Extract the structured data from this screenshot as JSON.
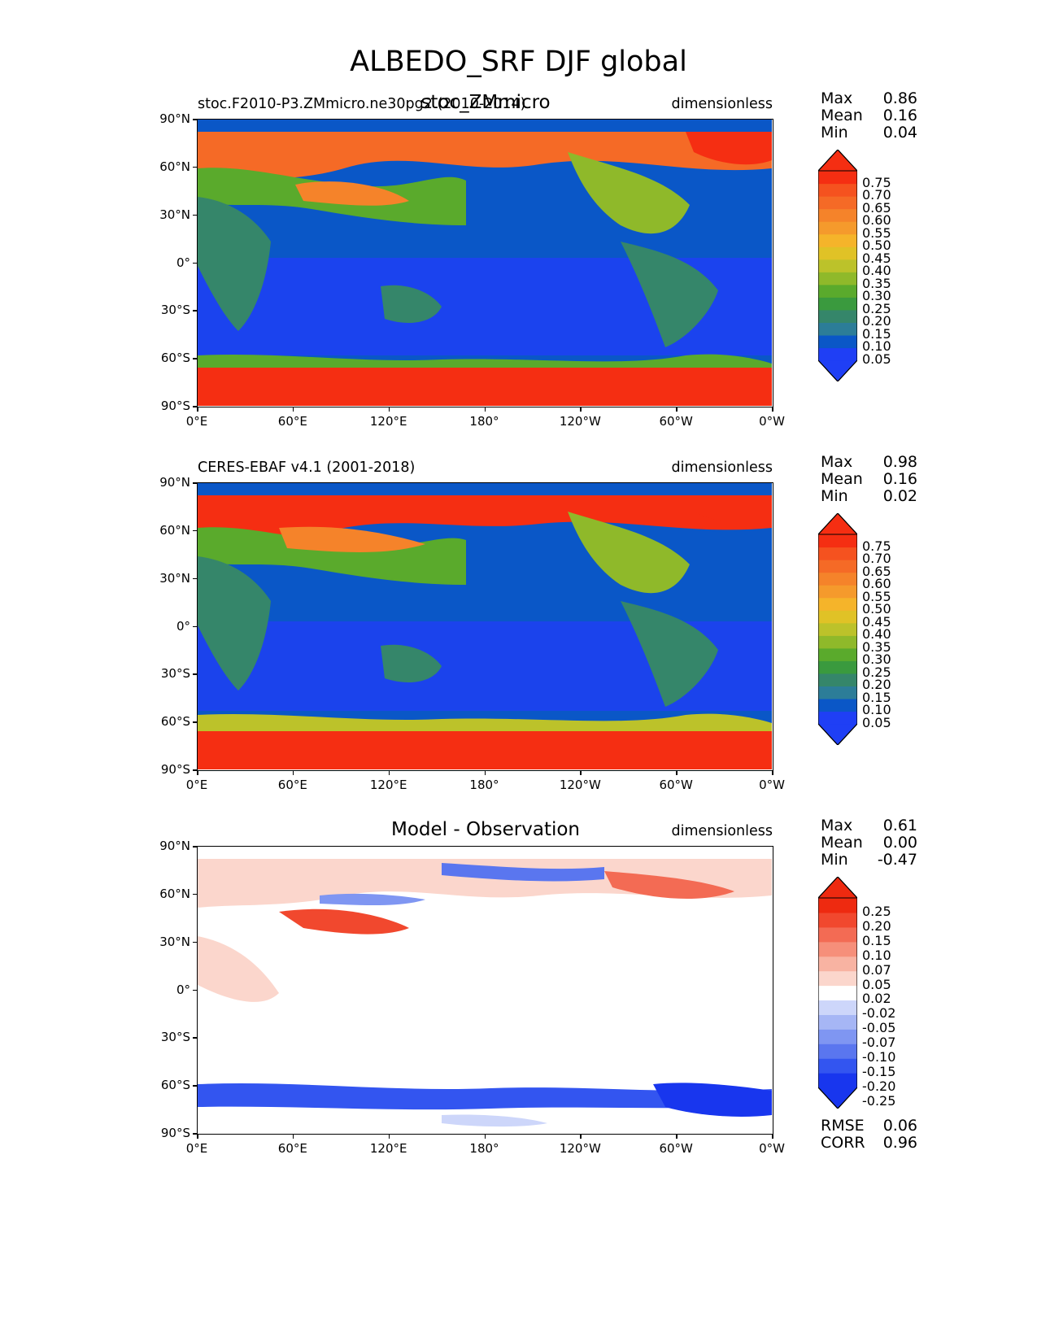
{
  "figure": {
    "title": "ALBEDO_SRF DJF global",
    "panels": [
      {
        "id": "model",
        "left_title": "stoc.F2010-P3.ZMmicro.ne30pg2 (2010-2014)",
        "center_title": "stoc_ZMmicro",
        "unit_label": "dimensionless",
        "stats": [
          {
            "label": "Max",
            "value": "0.86"
          },
          {
            "label": "Mean",
            "value": "0.16"
          },
          {
            "label": "Min",
            "value": "0.04"
          }
        ],
        "colorbar_ticks": [
          "0.75",
          "0.70",
          "0.65",
          "0.60",
          "0.55",
          "0.50",
          "0.45",
          "0.40",
          "0.35",
          "0.30",
          "0.25",
          "0.20",
          "0.15",
          "0.10",
          "0.05"
        ]
      },
      {
        "id": "obs",
        "left_title": "CERES-EBAF v4.1 (2001-2018)",
        "center_title": "",
        "unit_label": "dimensionless",
        "stats": [
          {
            "label": "Max",
            "value": "0.98"
          },
          {
            "label": "Mean",
            "value": "0.16"
          },
          {
            "label": "Min",
            "value": "0.02"
          }
        ],
        "colorbar_ticks": [
          "0.75",
          "0.70",
          "0.65",
          "0.60",
          "0.55",
          "0.50",
          "0.45",
          "0.40",
          "0.35",
          "0.30",
          "0.25",
          "0.20",
          "0.15",
          "0.10",
          "0.05"
        ]
      },
      {
        "id": "diff",
        "left_title": "",
        "center_title": "Model - Observation",
        "unit_label": "dimensionless",
        "stats": [
          {
            "label": "Max",
            "value": "0.61"
          },
          {
            "label": "Mean",
            "value": "0.00"
          },
          {
            "label": "Min",
            "value": "-0.47"
          }
        ],
        "colorbar_ticks": [
          "0.25",
          "0.20",
          "0.15",
          "0.10",
          "0.07",
          "0.05",
          "0.02",
          "-0.02",
          "-0.05",
          "-0.07",
          "-0.10",
          "-0.15",
          "-0.20",
          "-0.25"
        ],
        "extra_stats": [
          {
            "label": "RMSE",
            "value": "0.06"
          },
          {
            "label": "CORR",
            "value": "0.96"
          }
        ]
      }
    ],
    "lat_ticks": [
      "90°N",
      "60°N",
      "30°N",
      "0°",
      "30°S",
      "60°S",
      "90°S"
    ],
    "lon_ticks": [
      "0°E",
      "60°E",
      "120°E",
      "180°",
      "120°W",
      "60°W",
      "0°W"
    ],
    "colors": {
      "albedo_levels": [
        "#1f3ff5",
        "#0a57c7",
        "#2c7d98",
        "#35866a",
        "#3a9a3e",
        "#5aaa2c",
        "#8fb92a",
        "#bcc22a",
        "#e0c226",
        "#f5b42a",
        "#f59a2c",
        "#f5832a",
        "#f56a26",
        "#f5521f",
        "#f52e12"
      ],
      "diff_levels": [
        "#1836ee",
        "#3355f0",
        "#5a76ef",
        "#7f96f2",
        "#a6b6f5",
        "#cdd6fa",
        "#ffffff",
        "#fbd6cc",
        "#f8b3a2",
        "#f68f7a",
        "#f36b54",
        "#f1482e",
        "#ee2a10"
      ]
    }
  }
}
